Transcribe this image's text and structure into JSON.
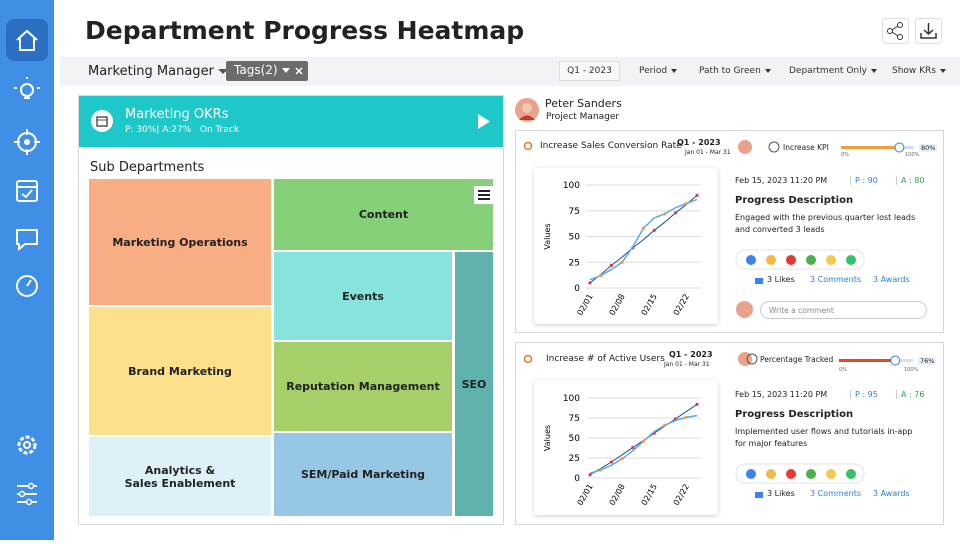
{
  "header": {
    "title": "Department Progress Heatmap"
  },
  "toolbar": {
    "manager": "Marketing Manager",
    "tags": "Tags(2)",
    "quarter": "Q1 - 2023",
    "filters": [
      "Period",
      "Path to Green",
      "Department Only",
      "Show KRs"
    ]
  },
  "okr": {
    "title": "Marketing OKRs",
    "progress": "P: 30%| A:27%",
    "status": "On Track"
  },
  "treemap": {
    "title": "Sub Departments",
    "cells": [
      {
        "label": "Marketing Operations",
        "color": "#f9ad85"
      },
      {
        "label": "Brand Marketing",
        "color": "#fde08b"
      },
      {
        "label": "Analytics &\nSales Enablement",
        "color": "#dff1f8"
      },
      {
        "label": "Content",
        "color": "#87d07a"
      },
      {
        "label": "Events",
        "color": "#86e3dd"
      },
      {
        "label": "Reputation Management",
        "color": "#a6ce69"
      },
      {
        "label": "SEM/Paid Marketing",
        "color": "#96c7e4"
      },
      {
        "label": "SEO",
        "color": "#5fb3ac"
      }
    ]
  },
  "person": {
    "name": "Peter Sanders",
    "role": "Project Manager"
  },
  "kpis": [
    {
      "title": "Increase Sales Conversion Rate",
      "quarter": "Q1 - 2023",
      "dates": "Jan 01 - Mar 31",
      "tracking": "Increase KPI",
      "progress": 80,
      "progress_label": "80%",
      "progress_color": "#f39c3c",
      "scale_min": "0%",
      "scale_max": "100%",
      "timestamp": "Feb 15, 2023 11:20 PM",
      "planned": "P : 90",
      "actual": "A : 80",
      "desc_title": "Progress Description",
      "description": "Engaged with the previous quarter lost leads and converted 3 leads",
      "likes": "3 Likes",
      "comments": "3 Comments",
      "awards": "3 Awards",
      "comment_placeholder": "Write a comment",
      "chart": {
        "type": "line",
        "ylabel": "Values",
        "ylim": [
          0,
          100
        ],
        "yticks": [
          0,
          25,
          50,
          75,
          100
        ],
        "categories": [
          "02/01",
          null,
          null,
          "02/08",
          null,
          null,
          "02/15",
          null,
          null,
          "02/22",
          null
        ],
        "series": [
          {
            "color": "#1f4e9c",
            "values": [
              5,
              13,
              22,
              30,
              39,
              47,
              56,
              64,
              73,
              81,
              90
            ]
          },
          {
            "color": "#5aa9e6",
            "values": [
              8,
              12,
              18,
              25,
              40,
              58,
              68,
              72,
              78,
              82,
              86
            ]
          }
        ]
      }
    },
    {
      "title": "Increase # of Active Users",
      "quarter": "Q1 - 2023",
      "dates": "Jan 01 - Mar 31",
      "tracking": "Percentage Tracked",
      "progress": 76,
      "progress_label": "76%",
      "progress_color": "#e8472b",
      "scale_min": "0%",
      "scale_max": "100%",
      "timestamp": "Feb 15, 2023 11:20 PM",
      "planned": "P : 95",
      "actual": "A : 76",
      "desc_title": "Progress Description",
      "description": "Implemented user flows and tutorials in-app for major features",
      "likes": "3 Likes",
      "comments": "3 Comments",
      "awards": "3 Awards",
      "chart": {
        "type": "line",
        "ylabel": "Values",
        "ylim": [
          0,
          100
        ],
        "yticks": [
          0,
          25,
          50,
          75,
          100
        ],
        "categories": [
          "02/01",
          null,
          null,
          "02/08",
          null,
          null,
          "02/15",
          null,
          null,
          "02/22",
          null
        ],
        "series": [
          {
            "color": "#1f4e9c",
            "values": [
              4,
              12,
              20,
              29,
              38,
              47,
              56,
              65,
              74,
              83,
              92
            ]
          },
          {
            "color": "#5aa9e6",
            "values": [
              6,
              10,
              16,
              24,
              34,
              46,
              58,
              66,
              72,
              76,
              78
            ]
          }
        ]
      }
    }
  ]
}
